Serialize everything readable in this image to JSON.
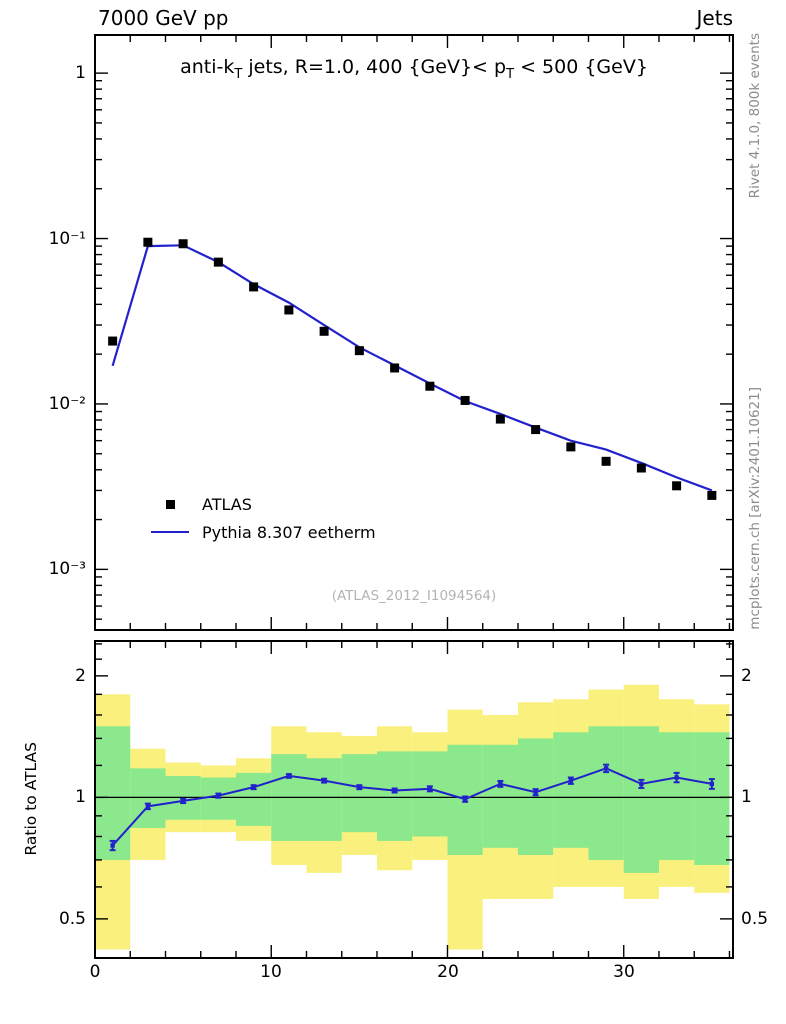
{
  "header": {
    "left": "7000 GeV pp",
    "right": "Jets"
  },
  "panel_title": {
    "pre": "anti-k",
    "sub1": "T",
    "mid": " jets, R=1.0, 400 {GeV}< p",
    "sub2": "T",
    "post": " < 500 {GeV}"
  },
  "watermark": "(ATLAS_2012_I1094564)",
  "side_notes": {
    "top": "Rivet 4.1.0,  800k events",
    "bottom": "mcplots.cern.ch [arXiv:2401.10621]"
  },
  "legend": [
    {
      "label": "ATLAS",
      "marker": "square",
      "color": "#000000"
    },
    {
      "label": "Pythia 8.307 eetherm",
      "marker": "line",
      "color": "#2222cc"
    }
  ],
  "axes": {
    "main_yticks": [
      "1",
      "10⁻¹",
      "10⁻²",
      "10⁻³"
    ],
    "ratio_yticks": [
      "2",
      "1",
      "0.5"
    ],
    "xticks": [
      "0",
      "10",
      "20",
      "30"
    ],
    "ratio_ylabel": "Ratio to ATLAS"
  },
  "colors": {
    "mc": "#2222cc",
    "data": "#000000",
    "band_yellow": "#faf07d",
    "band_green": "#8ce88c",
    "frame": "#000000",
    "watermark": "#b3b3b3",
    "side_note": "#8c8c8c"
  },
  "chart_data": [
    {
      "type": "line",
      "title": "anti-kT jets, R=1.0, 400 GeV < pT < 500 GeV",
      "xlabel": "",
      "ylabel": "",
      "xlim": [
        0,
        36.2
      ],
      "ylim_log": [
        0.00043,
        1.7
      ],
      "grid": false,
      "legend_position": "lower-left-inside",
      "x": [
        1,
        3,
        5,
        7,
        9,
        11,
        13,
        15,
        17,
        19,
        21,
        23,
        25,
        27,
        29,
        31,
        33,
        35
      ],
      "series": [
        {
          "name": "ATLAS",
          "style": "black filled squares",
          "values": [
            0.024,
            0.095,
            0.093,
            0.072,
            0.051,
            0.037,
            0.0275,
            0.021,
            0.0165,
            0.0128,
            0.0105,
            0.0081,
            0.007,
            0.0055,
            0.0045,
            0.0041,
            0.0032,
            0.0028
          ]
        },
        {
          "name": "Pythia 8.307 eetherm",
          "style": "blue solid line",
          "values": [
            0.017,
            0.09,
            0.091,
            0.072,
            0.053,
            0.041,
            0.03,
            0.022,
            0.0171,
            0.0133,
            0.0104,
            0.0087,
            0.0072,
            0.006,
            0.0053,
            0.0044,
            0.0036,
            0.003
          ]
        }
      ]
    },
    {
      "type": "line",
      "title": "Ratio panel with uncertainty bands",
      "ylabel": "Ratio to ATLAS",
      "xlim": [
        0,
        36.2
      ],
      "ylim_log": [
        0.4,
        2.44
      ],
      "x": [
        1,
        3,
        5,
        7,
        9,
        11,
        13,
        15,
        17,
        19,
        21,
        23,
        25,
        27,
        29,
        31,
        33,
        35
      ],
      "ratio": [
        0.76,
        0.95,
        0.98,
        1.01,
        1.06,
        1.13,
        1.1,
        1.06,
        1.04,
        1.05,
        0.99,
        1.08,
        1.03,
        1.1,
        1.18,
        1.08,
        1.12,
        1.08
      ],
      "ratio_err": [
        0.02,
        0.015,
        0.012,
        0.012,
        0.012,
        0.012,
        0.012,
        0.012,
        0.012,
        0.015,
        0.015,
        0.018,
        0.018,
        0.02,
        0.025,
        0.025,
        0.03,
        0.03
      ],
      "band_green_lo": [
        0.7,
        0.84,
        0.88,
        0.88,
        0.85,
        0.78,
        0.78,
        0.82,
        0.78,
        0.8,
        0.72,
        0.75,
        0.72,
        0.75,
        0.7,
        0.65,
        0.7,
        0.68
      ],
      "band_green_hi": [
        1.5,
        1.18,
        1.13,
        1.12,
        1.15,
        1.28,
        1.25,
        1.28,
        1.3,
        1.3,
        1.35,
        1.35,
        1.4,
        1.45,
        1.5,
        1.5,
        1.45,
        1.45
      ],
      "band_yellow_lo": [
        0.42,
        0.7,
        0.82,
        0.82,
        0.78,
        0.68,
        0.65,
        0.72,
        0.66,
        0.7,
        0.42,
        0.56,
        0.56,
        0.6,
        0.6,
        0.56,
        0.6,
        0.58
      ],
      "band_yellow_hi": [
        1.8,
        1.32,
        1.22,
        1.2,
        1.25,
        1.5,
        1.45,
        1.42,
        1.5,
        1.45,
        1.65,
        1.6,
        1.72,
        1.75,
        1.85,
        1.9,
        1.75,
        1.7
      ],
      "reference_line": 1
    }
  ]
}
